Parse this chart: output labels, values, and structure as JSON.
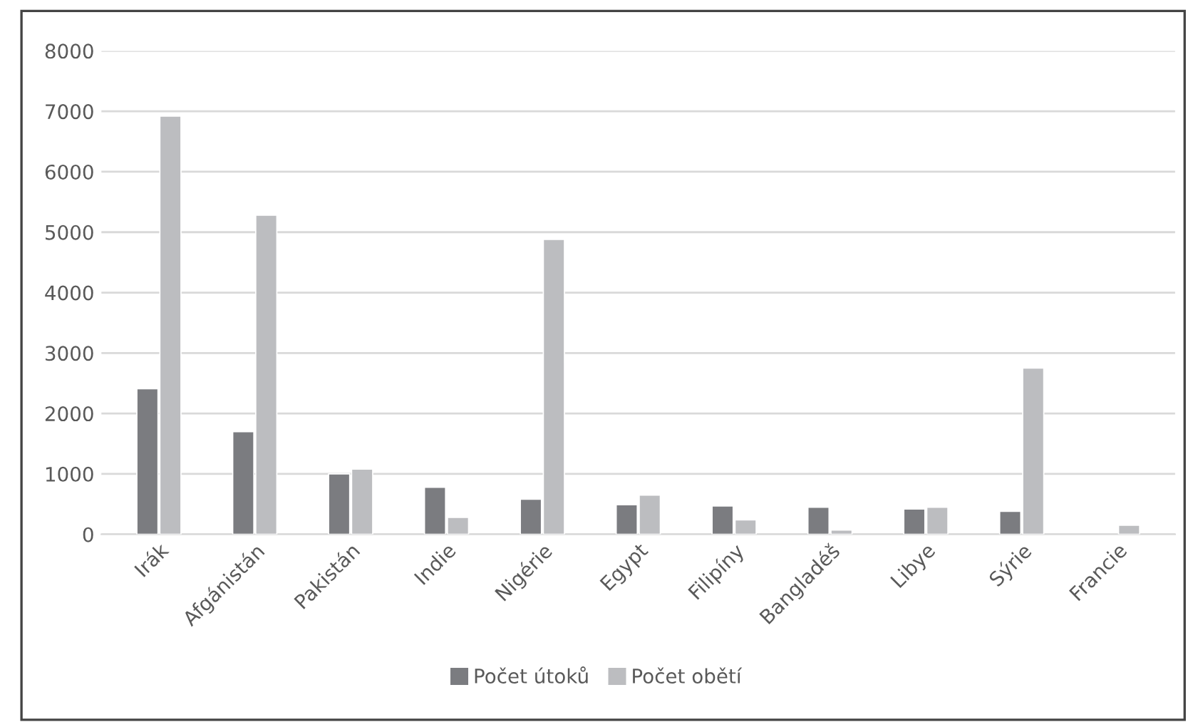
{
  "chart_data": {
    "type": "bar",
    "categories": [
      "Irák",
      "Afgánistán",
      "Pakistán",
      "Indie",
      "Nigérie",
      "Egypt",
      "Filipíny",
      "Bangladéš",
      "Libye",
      "Sýrie",
      "Francie"
    ],
    "series": [
      {
        "name": "Počet útoků",
        "color": "#7b7c80",
        "values": [
          2410,
          1700,
          1000,
          780,
          580,
          490,
          470,
          450,
          420,
          380,
          null
        ]
      },
      {
        "name": "Počet obětí",
        "color": "#bcbdc0",
        "values": [
          6920,
          5280,
          1080,
          280,
          4880,
          650,
          240,
          70,
          450,
          2750,
          150
        ]
      }
    ],
    "ylim": [
      0,
      8000
    ],
    "yticks": [
      0,
      1000,
      2000,
      3000,
      4000,
      5000,
      6000,
      7000,
      8000
    ],
    "grid": "y",
    "legend": "bottom"
  }
}
